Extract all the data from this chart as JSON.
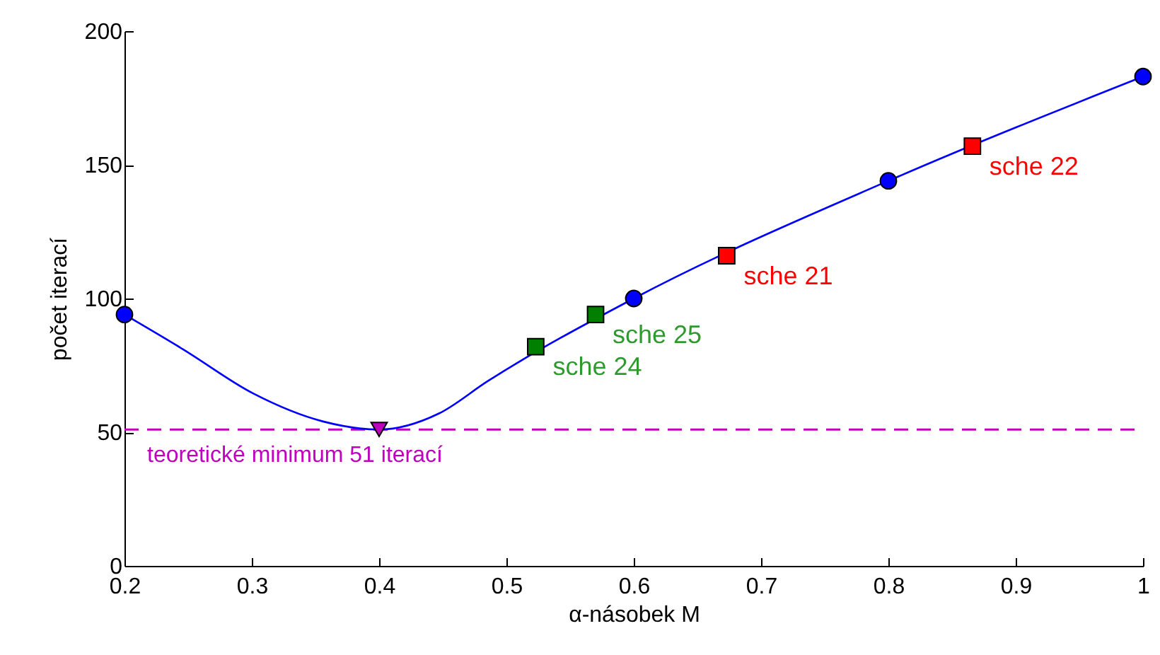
{
  "chart_data": {
    "type": "line",
    "xlabel": "α-násobek M",
    "ylabel": "počet iterací",
    "xlim": [
      0.2,
      1
    ],
    "xticks": [
      0.2,
      0.3,
      0.4,
      0.5,
      0.6,
      0.7,
      0.8,
      0.9,
      1
    ],
    "ylim": [
      0,
      200
    ],
    "yticks": [
      0,
      50,
      100,
      150,
      200
    ],
    "grid": false,
    "series": [
      {
        "type": "line",
        "color": "#0000ff",
        "marker": "none",
        "line_style": "solid",
        "x": [
          0.2,
          0.246,
          0.301,
          0.356,
          0.4,
          0.447,
          0.485,
          0.6,
          0.8,
          1
        ],
        "values": [
          94,
          81,
          64.5,
          54,
          51,
          57,
          69,
          100,
          144,
          183
        ]
      },
      {
        "type": "scatter",
        "color": "#0000ff",
        "marker": "circle",
        "x": [
          0.2,
          0.6,
          0.8,
          1
        ],
        "values": [
          94,
          100,
          144,
          183
        ]
      },
      {
        "type": "scatter",
        "color": "#bf00bf",
        "marker": "triangle",
        "x": [
          0.4
        ],
        "values": [
          51
        ]
      },
      {
        "type": "scatter",
        "color": "#007f00",
        "marker": "square",
        "x": [
          0.523,
          0.57
        ],
        "values": [
          82,
          94
        ]
      },
      {
        "type": "scatter",
        "color": "#ff0000",
        "marker": "square",
        "x": [
          0.673,
          0.866
        ],
        "values": [
          116,
          157
        ]
      }
    ],
    "ref_lines": [
      {
        "axis": "y",
        "value": 51,
        "label": "teoretické minimum 51 iterací",
        "color": "#bf00bf",
        "line_style": "dashed"
      }
    ],
    "annotations": [
      {
        "text": "sche 24",
        "x": 0.523,
        "y": 82
      },
      {
        "text": "sche 25",
        "x": 0.57,
        "y": 94
      },
      {
        "text": "sche 21",
        "x": 0.673,
        "y": 116
      },
      {
        "text": "sche 22",
        "x": 0.866,
        "y": 157
      }
    ]
  }
}
